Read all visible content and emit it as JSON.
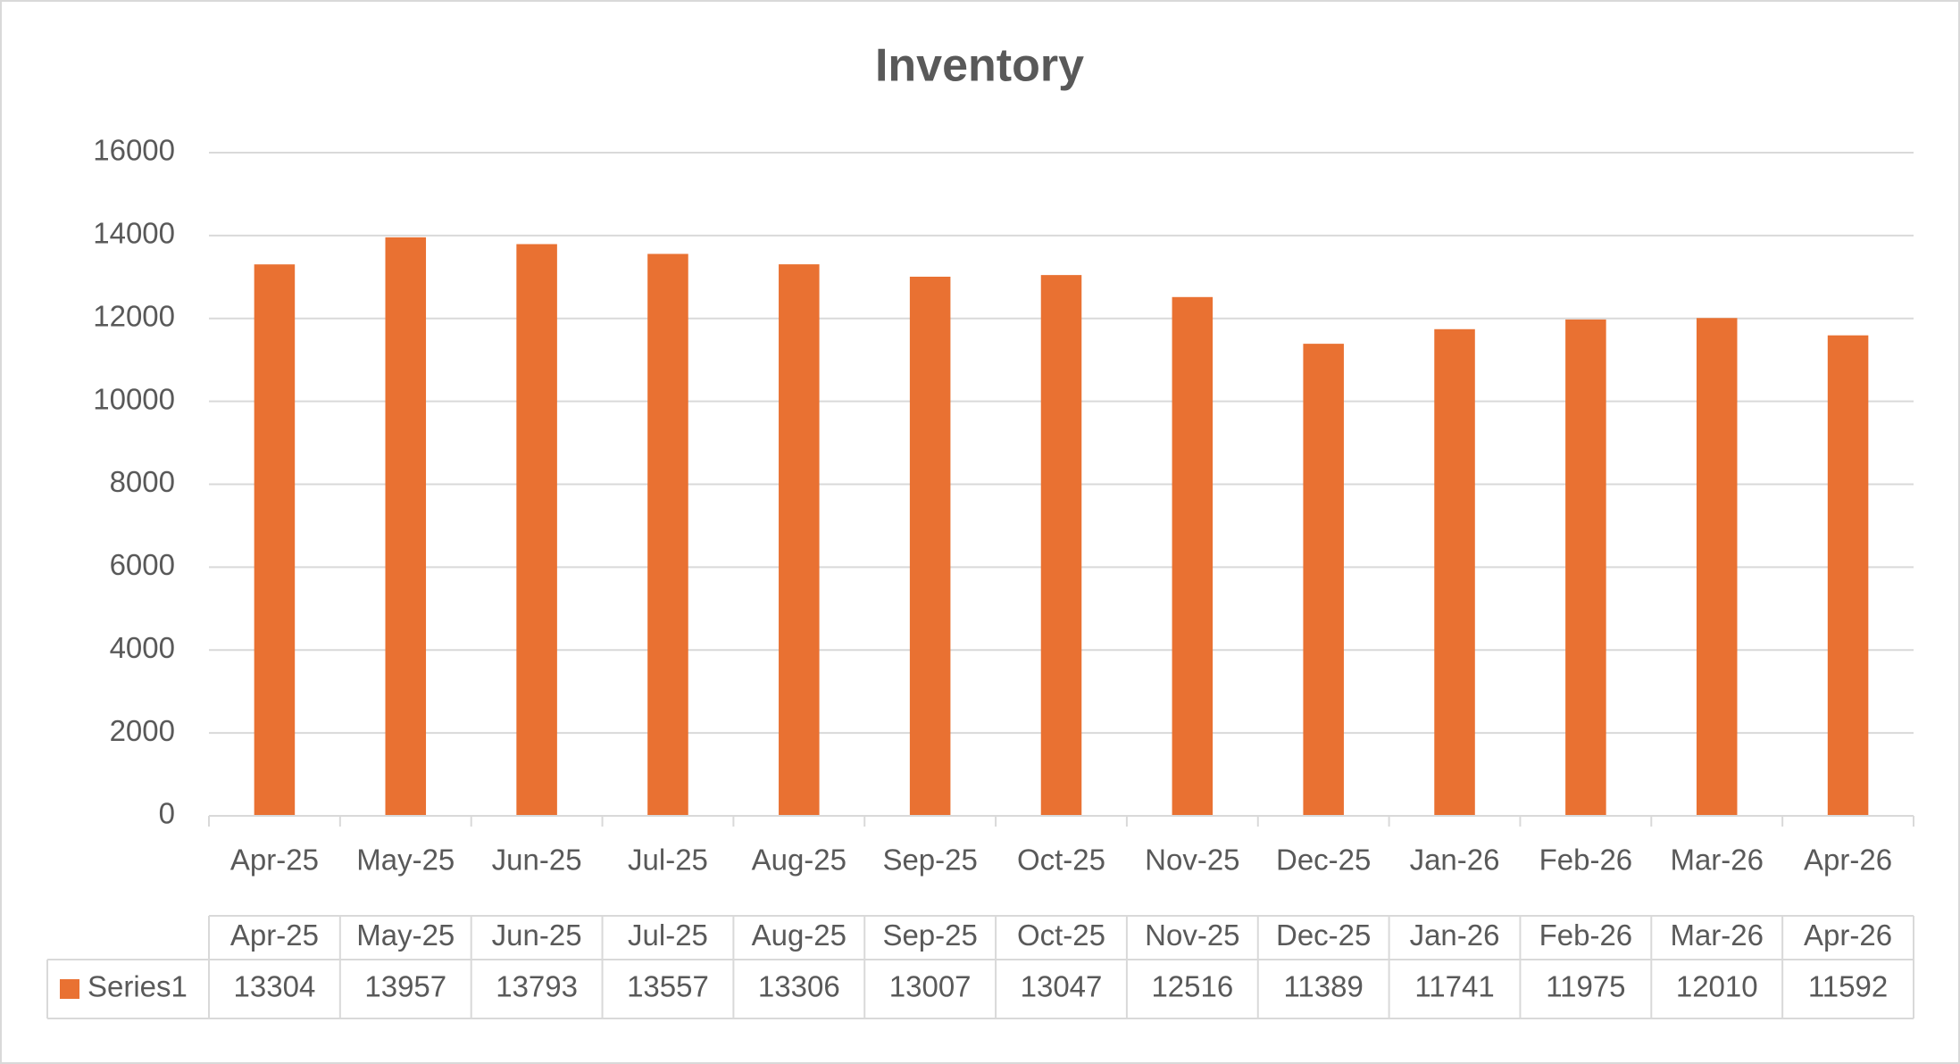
{
  "chart_data": {
    "type": "bar",
    "title": "Inventory",
    "categories": [
      "Apr-25",
      "May-25",
      "Jun-25",
      "Jul-25",
      "Aug-25",
      "Sep-25",
      "Oct-25",
      "Nov-25",
      "Dec-25",
      "Jan-26",
      "Feb-26",
      "Mar-26",
      "Apr-26"
    ],
    "series": [
      {
        "name": "Series1",
        "color": "#e97132",
        "values": [
          13304,
          13957,
          13793,
          13557,
          13306,
          13007,
          13047,
          12516,
          11389,
          11741,
          11975,
          12010,
          11592
        ]
      }
    ],
    "ylim": [
      0,
      16000
    ],
    "yticks": [
      0,
      2000,
      4000,
      6000,
      8000,
      10000,
      12000,
      14000,
      16000
    ],
    "grid": true,
    "data_table": true
  }
}
